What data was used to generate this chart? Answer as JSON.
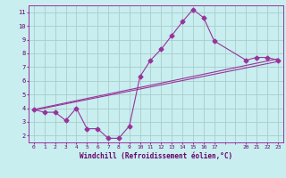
{
  "title": "",
  "xlabel": "Windchill (Refroidissement éolien,°C)",
  "ylabel": "",
  "bg_color": "#c8eef0",
  "line_color": "#993399",
  "grid_color": "#aacccc",
  "xlim": [
    -0.5,
    23.5
  ],
  "ylim": [
    1.5,
    11.5
  ],
  "xticks": [
    0,
    1,
    2,
    3,
    4,
    5,
    6,
    7,
    8,
    9,
    10,
    11,
    12,
    13,
    14,
    15,
    16,
    17,
    20,
    21,
    22,
    23
  ],
  "yticks": [
    2,
    3,
    4,
    5,
    6,
    7,
    8,
    9,
    10,
    11
  ],
  "scatter_x": [
    0,
    1,
    2,
    3,
    4,
    5,
    6,
    7,
    8,
    9,
    10,
    11,
    12,
    13,
    14,
    15,
    16,
    17,
    20,
    21,
    22,
    23
  ],
  "scatter_y": [
    3.9,
    3.7,
    3.7,
    3.1,
    4.0,
    2.5,
    2.5,
    1.8,
    1.8,
    2.7,
    6.3,
    7.5,
    8.3,
    9.3,
    10.3,
    11.2,
    10.6,
    8.9,
    7.5,
    7.7,
    7.7,
    7.5
  ],
  "line1_x": [
    0,
    23
  ],
  "line1_y": [
    3.9,
    7.6
  ],
  "line2_x": [
    0,
    23
  ],
  "line2_y": [
    3.85,
    7.4
  ],
  "marker_size": 2.5
}
